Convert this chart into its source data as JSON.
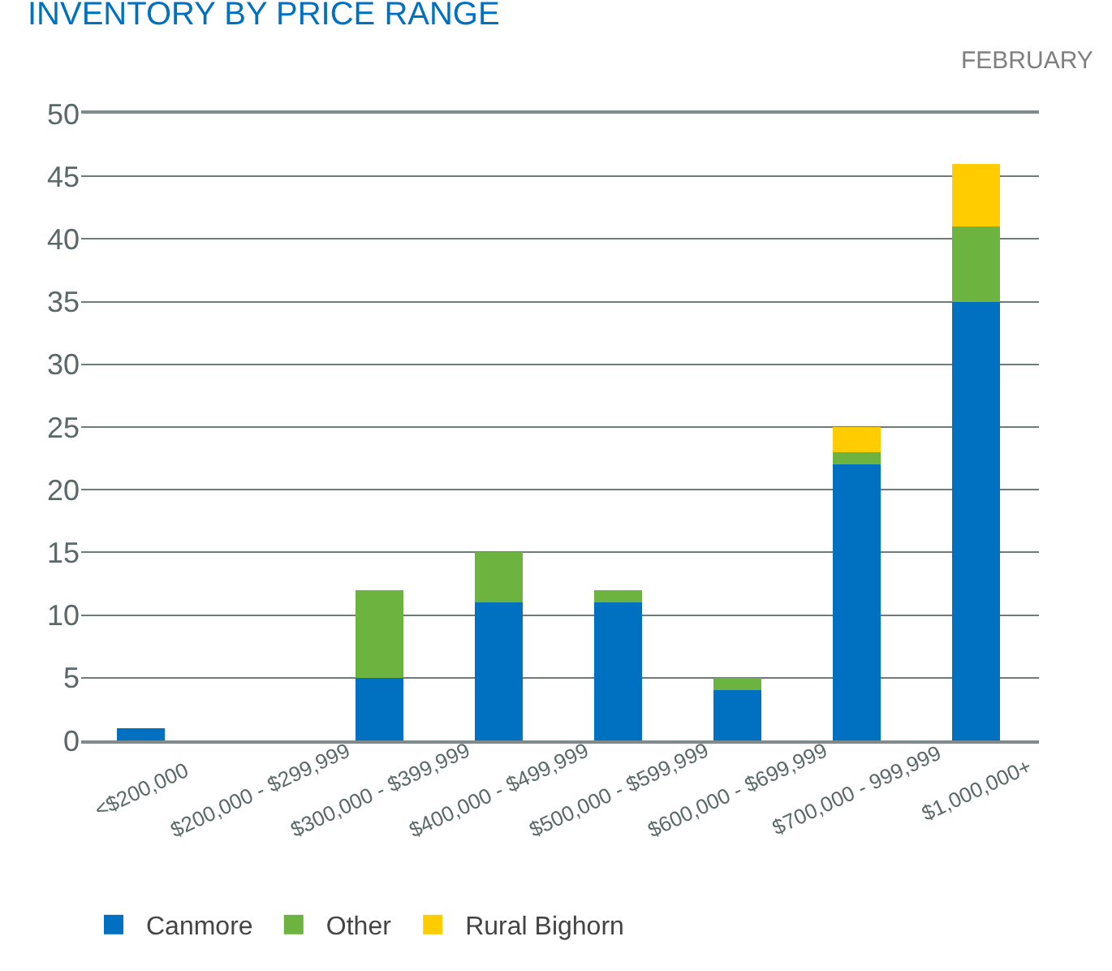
{
  "chart_data": {
    "type": "bar",
    "title": "INVENTORY BY PRICE RANGE",
    "subtitle": "FEBRUARY",
    "categories": [
      "<$200,000",
      "$200,000 - $299,999",
      "$300,000 - $399,999",
      "$400,000 - $499,999",
      "$500,000 - $599,999",
      "$600,000 - $699,999",
      "$700,000 - 999,999",
      "$1,000,000+"
    ],
    "stacked": true,
    "series": [
      {
        "name": "Canmore",
        "color": "#0070c0",
        "values": [
          1,
          0,
          5,
          11,
          11,
          4,
          22,
          35
        ]
      },
      {
        "name": "Other",
        "color": "#6db33f",
        "values": [
          0,
          0,
          7,
          4,
          1,
          1,
          1,
          6
        ]
      },
      {
        "name": "Rural Bighorn",
        "color": "#ffcc00",
        "values": [
          0,
          0,
          0,
          0,
          0,
          0,
          2,
          5
        ]
      }
    ],
    "ylim": [
      0,
      50
    ],
    "yticks": [
      0,
      5,
      10,
      15,
      20,
      25,
      30,
      35,
      40,
      45,
      50
    ],
    "grid": "y",
    "legend": "bottom"
  }
}
